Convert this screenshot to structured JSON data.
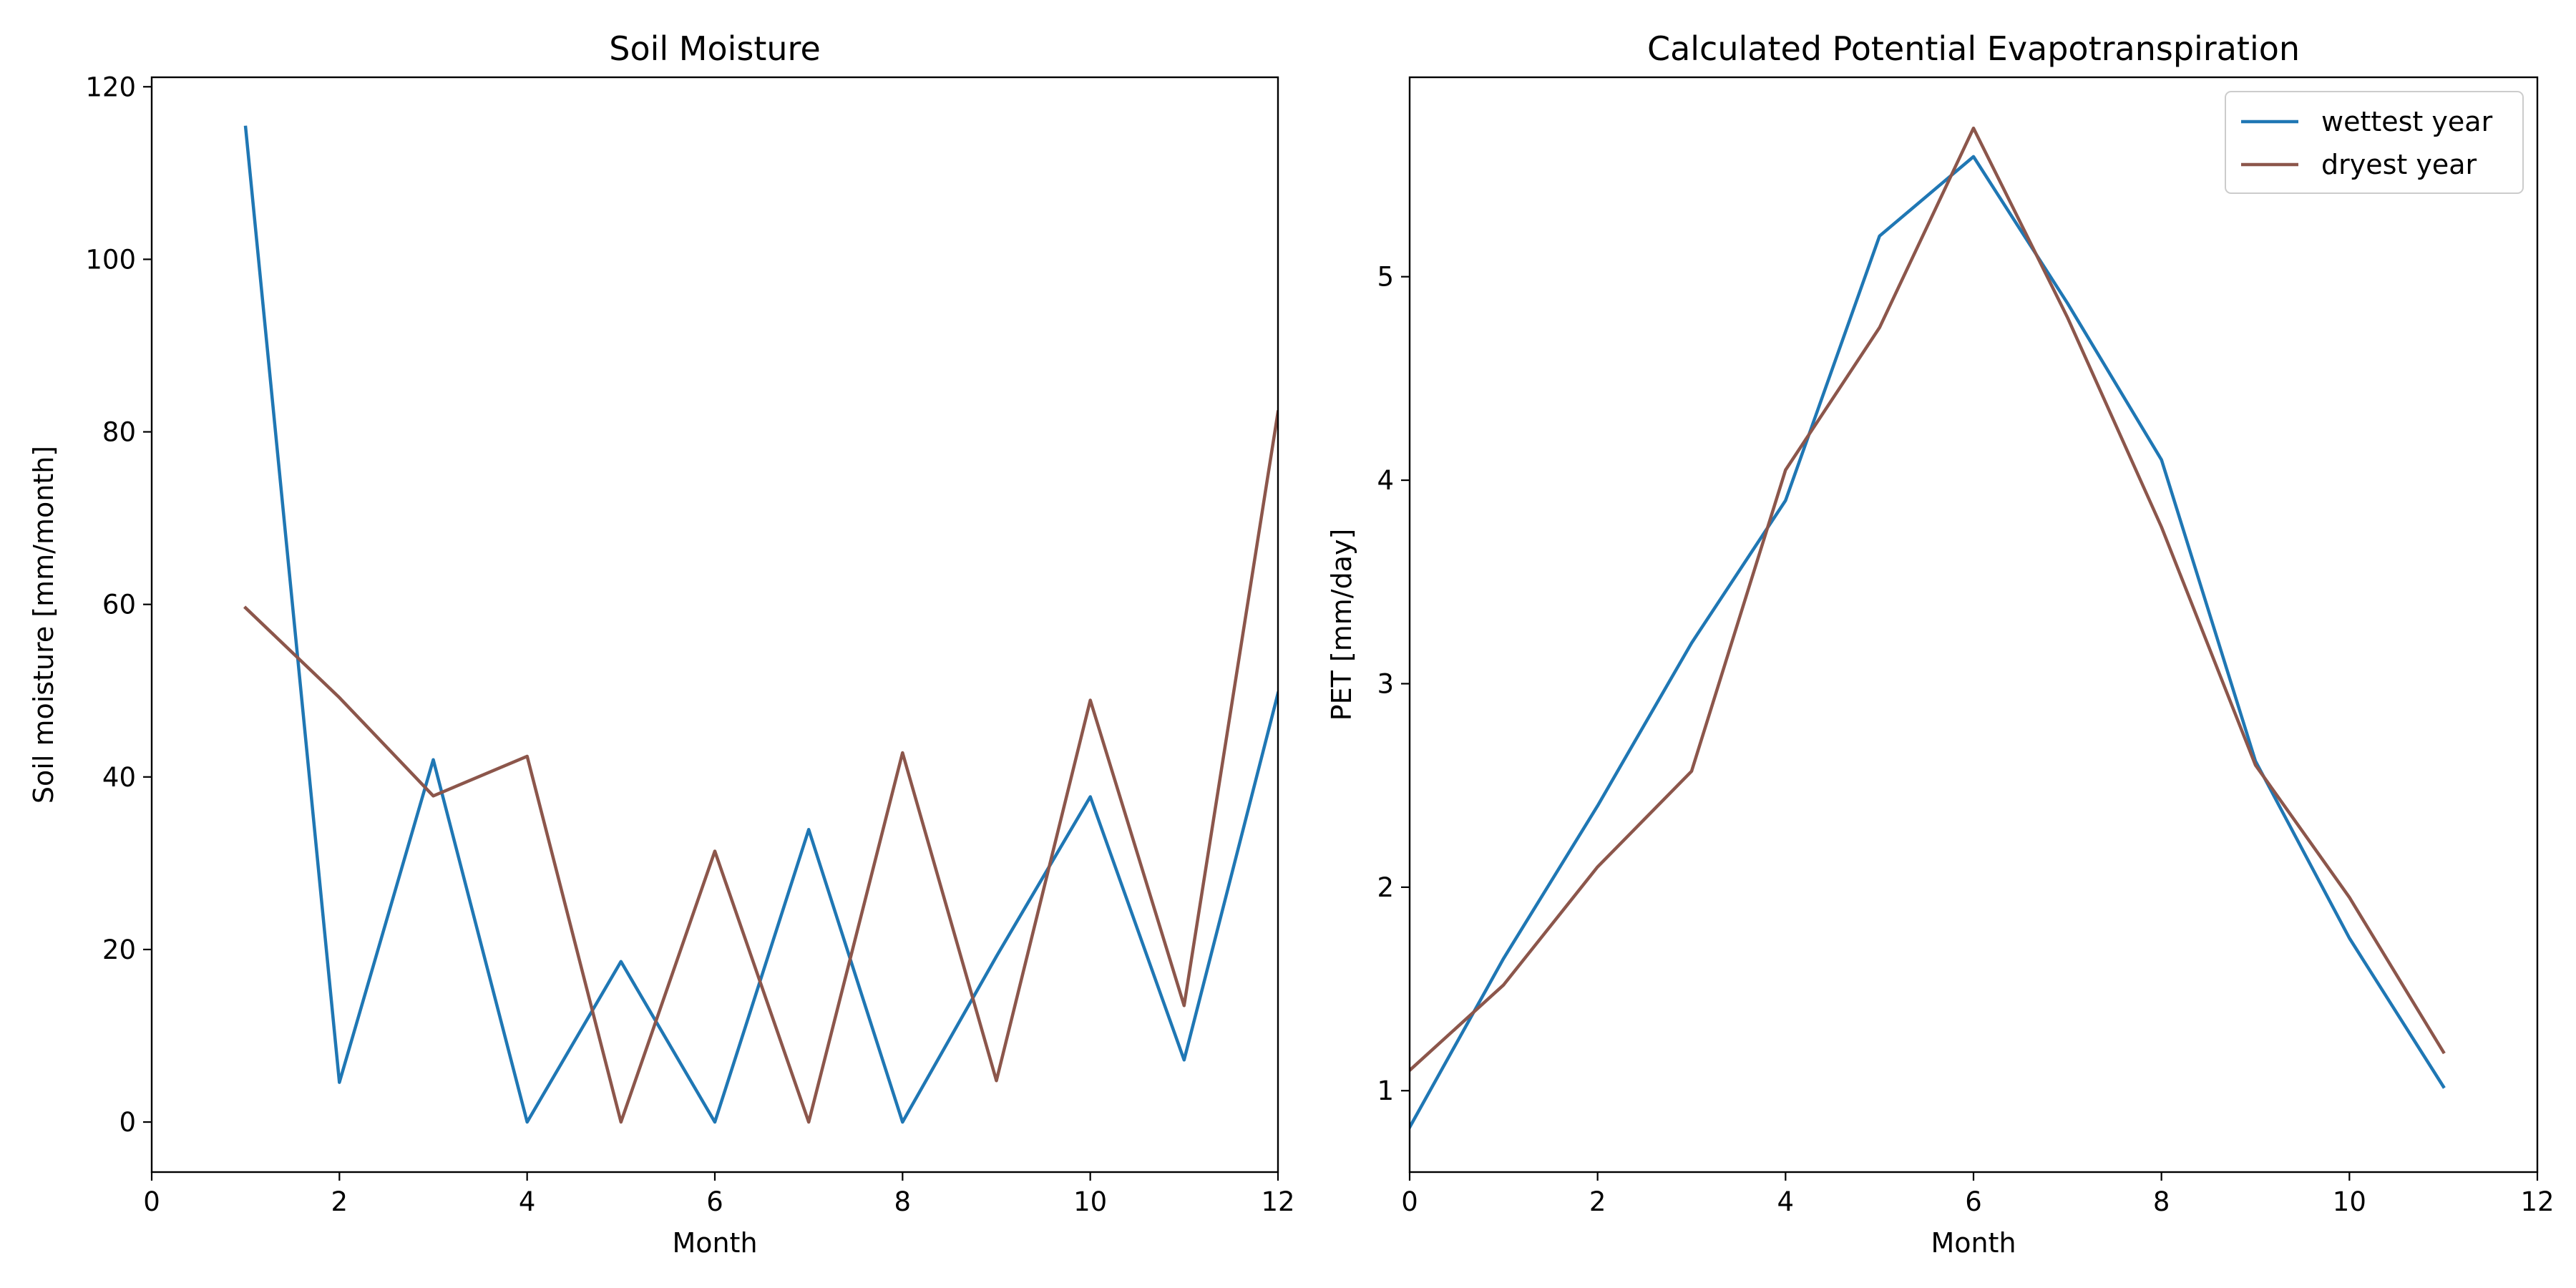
{
  "chart_data": [
    {
      "type": "line",
      "title": "Soil Moisture",
      "xlabel": "Month",
      "ylabel": "Soil moisture [mm/month]",
      "xlim": [
        0,
        12
      ],
      "ylim": [
        -5.8,
        121.1
      ],
      "xticks": [
        0,
        2,
        4,
        6,
        8,
        10,
        12
      ],
      "yticks": [
        0,
        20,
        40,
        60,
        80,
        100,
        120
      ],
      "grid": false,
      "x": [
        1,
        2,
        3,
        4,
        5,
        6,
        7,
        8,
        9,
        10,
        11,
        12
      ],
      "series": [
        {
          "color": "#1f77b4",
          "values": [
            115.3,
            4.6,
            42.0,
            0.0,
            18.6,
            0.0,
            33.9,
            0.0,
            19.2,
            37.7,
            7.2,
            49.7
          ]
        },
        {
          "color": "#8c564b",
          "values": [
            59.6,
            49.2,
            37.8,
            42.4,
            0.0,
            31.4,
            0.0,
            42.8,
            4.8,
            48.9,
            13.5,
            82.3
          ]
        }
      ]
    },
    {
      "type": "line",
      "title": "Calculated Potential Evapotranspiration",
      "xlabel": "Month",
      "ylabel": "PET [mm/day]",
      "xlim": [
        0,
        12
      ],
      "ylim": [
        0.6,
        5.98
      ],
      "xticks": [
        0,
        2,
        4,
        6,
        8,
        10,
        12
      ],
      "yticks": [
        1,
        2,
        3,
        4,
        5
      ],
      "grid": false,
      "legend_position": "top-right",
      "x": [
        0,
        1,
        2,
        3,
        4,
        5,
        6,
        7,
        8,
        9,
        10,
        11
      ],
      "series": [
        {
          "name": "wettest year",
          "color": "#1f77b4",
          "values": [
            0.82,
            1.65,
            2.4,
            3.2,
            3.9,
            5.2,
            5.59,
            4.87,
            4.1,
            2.62,
            1.75,
            1.02
          ]
        },
        {
          "name": "dryest year",
          "color": "#8c564b",
          "values": [
            1.1,
            1.52,
            2.1,
            2.57,
            4.05,
            4.75,
            5.73,
            4.8,
            3.77,
            2.6,
            1.95,
            1.19
          ]
        }
      ]
    }
  ]
}
